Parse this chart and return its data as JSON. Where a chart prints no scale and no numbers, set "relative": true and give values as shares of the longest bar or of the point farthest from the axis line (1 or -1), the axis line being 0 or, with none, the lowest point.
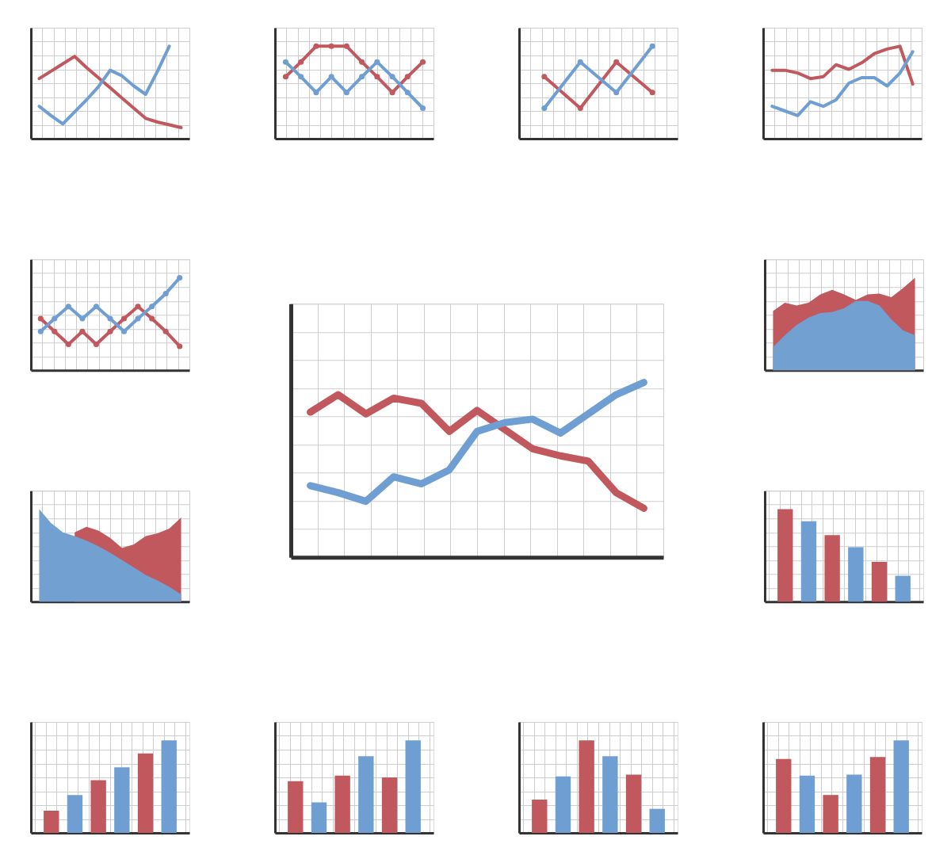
{
  "chart_data": [
    {
      "type": "line",
      "relative": true,
      "grid": true,
      "tick_labels": false,
      "categories": [
        null,
        null,
        null,
        null,
        null,
        null,
        null,
        null,
        null,
        null,
        null,
        null,
        null
      ],
      "series": [
        {
          "color": "#c1585e",
          "values": [
            0.65,
            0.73,
            0.81,
            0.89,
            0.77,
            0.66,
            0.55,
            0.44,
            0.33,
            0.22,
            0.18,
            0.15,
            0.12
          ]
        },
        {
          "color": "#6f9fd2",
          "values": [
            0.35,
            0.25,
            0.16,
            0.29,
            0.42,
            0.56,
            0.74,
            0.68,
            0.57,
            0.48,
            0.73,
            1.0,
            null
          ]
        }
      ]
    },
    {
      "type": "line",
      "relative": true,
      "grid": true,
      "tick_labels": false,
      "marker": "circle",
      "categories": [
        null,
        null,
        null,
        null,
        null,
        null,
        null,
        null,
        null,
        null
      ],
      "series": [
        {
          "color": "#c1585e",
          "values": [
            0.67,
            0.83,
            1.0,
            1.0,
            1.0,
            0.83,
            0.67,
            0.5,
            0.67,
            0.83
          ]
        },
        {
          "color": "#6f9fd2",
          "values": [
            0.83,
            0.67,
            0.5,
            0.67,
            0.5,
            0.67,
            0.83,
            0.67,
            0.5,
            0.33
          ]
        }
      ]
    },
    {
      "type": "line",
      "relative": true,
      "grid": true,
      "tick_labels": false,
      "marker": "circle",
      "categories": [
        null,
        null,
        null,
        null
      ],
      "series": [
        {
          "color": "#c1585e",
          "values": [
            0.67,
            0.33,
            0.83,
            0.5
          ]
        },
        {
          "color": "#6f9fd2",
          "values": [
            0.33,
            0.83,
            0.5,
            1.0
          ]
        }
      ]
    },
    {
      "type": "line",
      "relative": true,
      "grid": true,
      "tick_labels": false,
      "categories": [
        null,
        null,
        null,
        null,
        null,
        null,
        null,
        null,
        null,
        null,
        null,
        null
      ],
      "series": [
        {
          "color": "#c1585e",
          "values": [
            0.74,
            0.74,
            0.71,
            0.65,
            0.67,
            0.8,
            0.75,
            0.82,
            0.92,
            0.97,
            1.0,
            0.59
          ]
        },
        {
          "color": "#6f9fd2",
          "values": [
            0.35,
            0.3,
            0.25,
            0.4,
            0.35,
            0.42,
            0.6,
            0.66,
            0.66,
            0.57,
            0.71,
            0.94
          ]
        }
      ]
    },
    {
      "type": "line",
      "relative": true,
      "grid": true,
      "tick_labels": false,
      "marker": "circle",
      "categories": [
        null,
        null,
        null,
        null,
        null,
        null,
        null,
        null,
        null,
        null,
        null
      ],
      "series": [
        {
          "color": "#c1585e",
          "values": [
            0.56,
            0.42,
            0.28,
            0.42,
            0.28,
            0.42,
            0.56,
            0.69,
            0.56,
            0.42,
            0.26
          ]
        },
        {
          "color": "#6f9fd2",
          "values": [
            0.42,
            0.56,
            0.69,
            0.56,
            0.69,
            0.56,
            0.42,
            0.56,
            0.69,
            0.83,
            1.0
          ]
        }
      ]
    },
    {
      "type": "line",
      "relative": true,
      "grid": true,
      "tick_labels": false,
      "categories": [
        null,
        null,
        null,
        null,
        null,
        null,
        null,
        null,
        null,
        null,
        null,
        null,
        null
      ],
      "series": [
        {
          "color": "#c1585e",
          "values": [
            0.83,
            0.93,
            0.82,
            0.91,
            0.88,
            0.72,
            0.84,
            0.73,
            0.62,
            0.58,
            0.55,
            0.37,
            0.28
          ]
        },
        {
          "color": "#6f9fd2",
          "values": [
            0.41,
            0.37,
            0.32,
            0.46,
            0.42,
            0.5,
            0.72,
            0.77,
            0.79,
            0.71,
            0.82,
            0.93,
            1.0
          ]
        }
      ]
    },
    {
      "type": "area",
      "relative": true,
      "grid": true,
      "tick_labels": false,
      "categories": [
        null,
        null,
        null,
        null,
        null,
        null,
        null,
        null,
        null,
        null,
        null,
        null,
        null
      ],
      "series": [
        {
          "color": "#c1585e",
          "values": [
            0.64,
            0.73,
            0.7,
            0.73,
            0.82,
            0.87,
            0.82,
            0.76,
            0.82,
            0.83,
            0.79,
            0.89,
            1.0
          ]
        },
        {
          "color": "#72a0d0",
          "values": [
            0.25,
            0.38,
            0.49,
            0.57,
            0.62,
            0.63,
            0.67,
            0.75,
            0.75,
            0.7,
            0.55,
            0.43,
            0.38
          ]
        }
      ]
    },
    {
      "type": "area",
      "relative": true,
      "grid": true,
      "tick_labels": false,
      "categories": [
        null,
        null,
        null,
        null,
        null,
        null,
        null,
        null,
        null,
        null,
        null,
        null,
        null
      ],
      "series": [
        {
          "color": "#c1585e",
          "values": [
            null,
            null,
            null,
            0.75,
            0.81,
            0.77,
            0.69,
            0.58,
            0.62,
            0.71,
            0.74,
            0.79,
            0.91
          ]
        },
        {
          "color": "#72a0d0",
          "values": [
            1.0,
            0.85,
            0.75,
            0.71,
            0.66,
            0.6,
            0.53,
            0.45,
            0.37,
            0.29,
            0.23,
            0.16,
            0.08
          ]
        }
      ]
    },
    {
      "type": "bar",
      "relative": true,
      "grid": true,
      "tick_labels": false,
      "categories": [
        null,
        null,
        null,
        null,
        null,
        null
      ],
      "values": [
        1.0,
        0.87,
        0.72,
        0.59,
        0.43,
        0.28
      ],
      "colors": [
        "#c1585e",
        "#6f9fd2",
        "#c1585e",
        "#6f9fd2",
        "#c1585e",
        "#6f9fd2"
      ]
    },
    {
      "type": "bar",
      "relative": true,
      "grid": true,
      "tick_labels": false,
      "categories": [
        null,
        null,
        null,
        null,
        null,
        null
      ],
      "values": [
        0.24,
        0.41,
        0.57,
        0.71,
        0.86,
        1.0
      ],
      "colors": [
        "#c1585e",
        "#6f9fd2",
        "#c1585e",
        "#6f9fd2",
        "#c1585e",
        "#6f9fd2"
      ]
    },
    {
      "type": "bar",
      "relative": true,
      "grid": true,
      "tick_labels": false,
      "categories": [
        null,
        null,
        null,
        null,
        null,
        null
      ],
      "values": [
        0.56,
        0.33,
        0.62,
        0.83,
        0.6,
        1.0
      ],
      "colors": [
        "#c1585e",
        "#6f9fd2",
        "#c1585e",
        "#6f9fd2",
        "#c1585e",
        "#6f9fd2"
      ]
    },
    {
      "type": "bar",
      "relative": true,
      "grid": true,
      "tick_labels": false,
      "categories": [
        null,
        null,
        null,
        null,
        null,
        null
      ],
      "values": [
        0.36,
        0.61,
        1.0,
        0.83,
        0.63,
        0.26
      ],
      "colors": [
        "#c1585e",
        "#6f9fd2",
        "#c1585e",
        "#6f9fd2",
        "#c1585e",
        "#6f9fd2"
      ]
    },
    {
      "type": "bar",
      "relative": true,
      "grid": true,
      "tick_labels": false,
      "categories": [
        null,
        null,
        null,
        null,
        null,
        null
      ],
      "values": [
        0.8,
        0.62,
        0.41,
        0.63,
        0.82,
        1.0
      ],
      "colors": [
        "#c1585e",
        "#6f9fd2",
        "#c1585e",
        "#6f9fd2",
        "#c1585e",
        "#6f9fd2"
      ]
    }
  ]
}
